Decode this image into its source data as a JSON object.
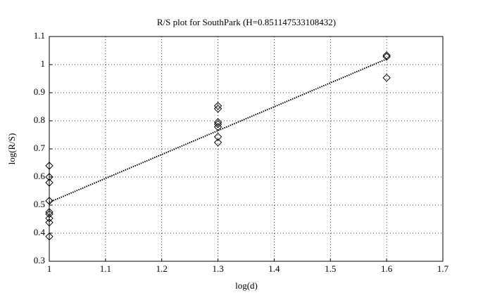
{
  "chart_data": {
    "type": "scatter",
    "title": "R/S plot for SouthPark (H=0.851147533108432)",
    "x_label": "log(d)",
    "y_label": "log(R/S)",
    "xlim": [
      1,
      1.7
    ],
    "xticks": [
      1,
      1.1,
      1.2,
      1.3,
      1.4,
      1.5,
      1.6,
      1.7
    ],
    "ylim": [
      0.3,
      1.1
    ],
    "yticks": [
      0.3,
      0.4,
      0.5,
      0.6,
      0.7,
      0.8,
      0.9,
      1,
      1.1
    ],
    "grid": true,
    "series": [
      {
        "style": "diamond",
        "color": "#000000",
        "x": [
          1,
          1,
          1,
          1,
          1,
          1,
          1,
          1,
          1,
          1.3,
          1.3,
          1.3,
          1.3,
          1.3,
          1.3,
          1.3,
          1.6,
          1.6,
          1.6
        ],
        "values": [
          0.64,
          0.6,
          0.58,
          0.515,
          0.475,
          0.468,
          0.453,
          0.438,
          0.388,
          0.853,
          0.843,
          0.795,
          0.788,
          0.778,
          0.743,
          0.723,
          1.033,
          1.028,
          0.953
        ]
      },
      {
        "style": "dotted-line",
        "color": "#000000",
        "x": [
          1,
          1.6
        ],
        "values": [
          0.51,
          1.02
        ]
      }
    ]
  }
}
